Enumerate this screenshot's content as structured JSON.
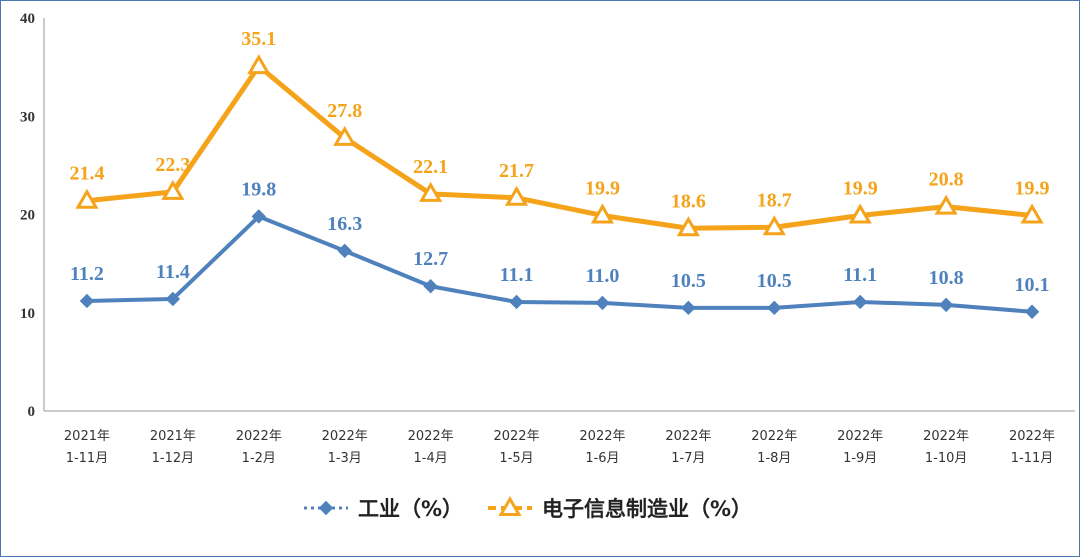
{
  "chart_data": {
    "type": "line",
    "categories": [
      [
        "2021年",
        "1-11月"
      ],
      [
        "2021年",
        "1-12月"
      ],
      [
        "2022年",
        "1-2月"
      ],
      [
        "2022年",
        "1-3月"
      ],
      [
        "2022年",
        "1-4月"
      ],
      [
        "2022年",
        "1-5月"
      ],
      [
        "2022年",
        "1-6月"
      ],
      [
        "2022年",
        "1-7月"
      ],
      [
        "2022年",
        "1-8月"
      ],
      [
        "2022年",
        "1-9月"
      ],
      [
        "2022年",
        "1-10月"
      ],
      [
        "2022年",
        "1-11月"
      ]
    ],
    "series": [
      {
        "name": "工业（%）",
        "marker": "diamond",
        "color": "#4f81bd",
        "values": [
          11.2,
          11.4,
          19.8,
          16.3,
          12.7,
          11.1,
          11.0,
          10.5,
          10.5,
          11.1,
          10.8,
          10.1
        ],
        "labels": [
          "11.2",
          "11.4",
          "19.8",
          "16.3",
          "12.7",
          "11.1",
          "11.0",
          "10.5",
          "10.5",
          "11.1",
          "10.8",
          "10.1"
        ]
      },
      {
        "name": "电子信息制造业（%）",
        "marker": "triangle",
        "color": "#f5a31a",
        "values": [
          21.4,
          22.3,
          35.1,
          27.8,
          22.1,
          21.7,
          19.9,
          18.6,
          18.7,
          19.9,
          20.8,
          19.9
        ],
        "labels": [
          "21.4",
          "22.3",
          "35.1",
          "27.8",
          "22.1",
          "21.7",
          "19.9",
          "18.6",
          "18.7",
          "19.9",
          "20.8",
          "19.9"
        ]
      }
    ],
    "ylim": [
      0,
      40
    ],
    "yticks": [
      "0",
      "10",
      "20",
      "30",
      "40"
    ],
    "grid": false,
    "legend_position": "bottom"
  }
}
